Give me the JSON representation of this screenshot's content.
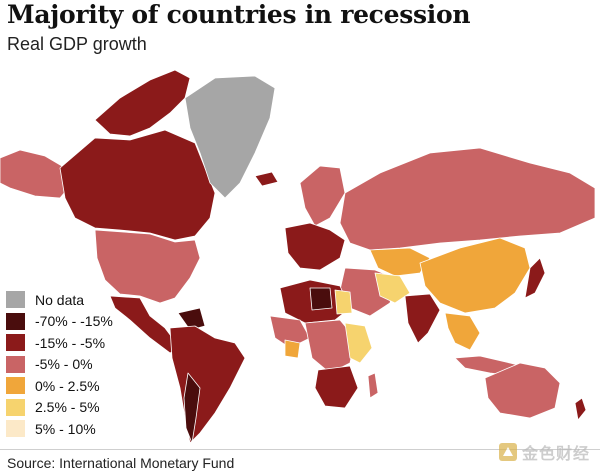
{
  "header": {
    "title": "Majority of countries in recession",
    "subtitle": "Real GDP growth"
  },
  "legend": {
    "items": [
      {
        "label": "No data",
        "color": "#a6a6a6"
      },
      {
        "label": "-70% - -15%",
        "color": "#4a0d0d"
      },
      {
        "label": "-15% - -5%",
        "color": "#8b1a1a"
      },
      {
        "label": "-5% - 0%",
        "color": "#c96465"
      },
      {
        "label": "0% - 2.5%",
        "color": "#f0a63a"
      },
      {
        "label": "2.5% - 5%",
        "color": "#f6d36e"
      },
      {
        "label": "5% - 10%",
        "color": "#fce9c8"
      }
    ]
  },
  "footer": {
    "source": "Source: International Monetary Fund",
    "watermark": "金色财经"
  }
}
